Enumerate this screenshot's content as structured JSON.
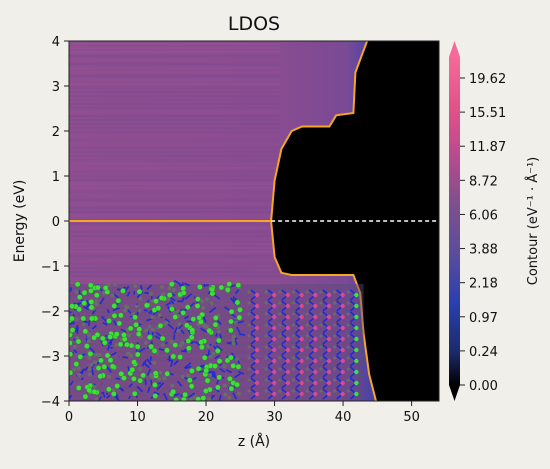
{
  "chart_data": {
    "type": "heatmap",
    "title": "LDOS",
    "xlabel": "z (Å)",
    "ylabel": "Energy (eV)",
    "xlim": [
      0,
      54
    ],
    "ylim": [
      -4,
      4
    ],
    "x_ticks": [
      "0",
      "10",
      "20",
      "30",
      "40",
      "50"
    ],
    "x_tick_values": [
      0,
      10,
      20,
      30,
      40,
      50
    ],
    "y_ticks": [
      "−4",
      "−3",
      "−2",
      "−1",
      "0",
      "1",
      "2",
      "3",
      "4"
    ],
    "y_tick_values": [
      -4,
      -3,
      -2,
      -1,
      0,
      1,
      2,
      3,
      4
    ],
    "colorbar": {
      "label": "Contour (eV⁻¹ · Å⁻¹)",
      "ticks": [
        "0.00",
        "0.24",
        "0.97",
        "2.18",
        "3.88",
        "6.06",
        "8.72",
        "11.87",
        "15.51",
        "19.62"
      ],
      "colors": [
        "#000000",
        "#1c2a6a",
        "#2b3fae",
        "#5a4d9c",
        "#7e4f8e",
        "#9b4f8e",
        "#b84b8e",
        "#d04c8c",
        "#e3528a",
        "#ef5b8e",
        "#f56a98"
      ]
    },
    "fermi_level": 0,
    "band_edge_contour": {
      "color": "#f5a623",
      "conduction_edge": [
        {
          "z": 29.5,
          "E": 0.0
        },
        {
          "z": 30.0,
          "E": 0.9
        },
        {
          "z": 31.0,
          "E": 1.6
        },
        {
          "z": 32.5,
          "E": 2.0
        },
        {
          "z": 34.0,
          "E": 2.1
        },
        {
          "z": 38.0,
          "E": 2.1
        },
        {
          "z": 39.0,
          "E": 2.35
        },
        {
          "z": 41.5,
          "E": 2.4
        },
        {
          "z": 41.8,
          "E": 3.3
        },
        {
          "z": 43.5,
          "E": 4.0
        }
      ],
      "valence_edge": [
        {
          "z": 29.5,
          "E": 0.0
        },
        {
          "z": 30.0,
          "E": -0.8
        },
        {
          "z": 31.0,
          "E": -1.15
        },
        {
          "z": 32.5,
          "E": -1.2
        },
        {
          "z": 41.5,
          "E": -1.2
        },
        {
          "z": 42.5,
          "E": -1.6
        },
        {
          "z": 43.0,
          "E": -2.5
        },
        {
          "z": 43.8,
          "E": -3.4
        },
        {
          "z": 44.8,
          "E": -4.0
        }
      ]
    },
    "structure_inset": {
      "z_range": [
        0,
        43
      ],
      "E_range": [
        -4,
        -1.4
      ],
      "amorphous_z_range": [
        0,
        25
      ],
      "crystal_z_range": [
        25,
        43
      ],
      "crystal_layers_z": [
        27.0,
        29.5,
        31.5,
        33.5,
        35.5,
        37.5,
        39.5,
        41.5
      ],
      "atom_colors": {
        "green": "#3ee03a",
        "blue": "#1d2bd6",
        "gray": "#6b6b6b"
      }
    }
  }
}
